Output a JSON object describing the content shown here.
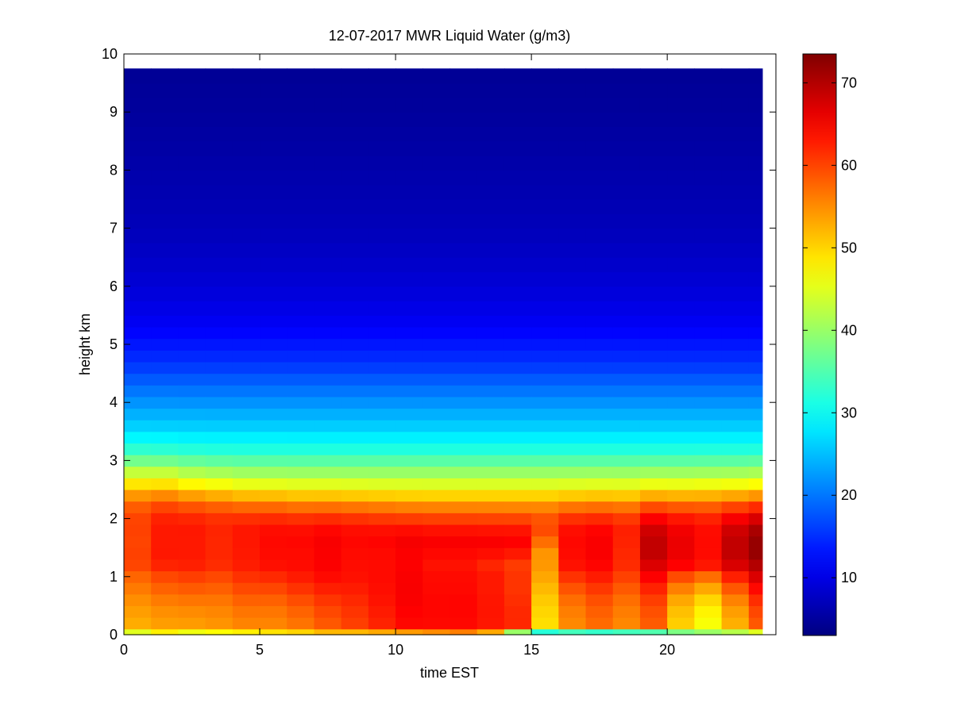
{
  "chart_data": {
    "type": "heatmap",
    "title": "12-07-2017 MWR Liquid Water (g/m3)",
    "xlabel": "time EST",
    "ylabel": "height km",
    "xlim": [
      0,
      24
    ],
    "ylim": [
      0,
      10
    ],
    "x_ticks": [
      "0",
      "5",
      "10",
      "15",
      "20"
    ],
    "y_ticks": [
      "0",
      "1",
      "2",
      "3",
      "4",
      "5",
      "6",
      "7",
      "8",
      "9",
      "10"
    ],
    "colorbar": {
      "range": [
        3,
        73.5
      ],
      "ticks": [
        "10",
        "20",
        "30",
        "40",
        "50",
        "60",
        "70"
      ],
      "colormap": "jet"
    },
    "grid": false,
    "x_edges": [
      0,
      1,
      2,
      3,
      4,
      5,
      6,
      7,
      8,
      9,
      10,
      11,
      12,
      13,
      14,
      15,
      16,
      17,
      18,
      19,
      20,
      21,
      22,
      23,
      23.5
    ],
    "y_edges": [
      0,
      0.1,
      0.3,
      0.5,
      0.7,
      0.9,
      1.1,
      1.3,
      1.5,
      1.7,
      1.9,
      2.1,
      2.3,
      2.5,
      2.7,
      2.9,
      3.1,
      3.3,
      3.5,
      3.7,
      3.9,
      4.1,
      4.3,
      4.5,
      4.7,
      4.9,
      5.1,
      5.3,
      5.5,
      5.75,
      6.0,
      6.25,
      6.5,
      6.75,
      7.0,
      7.25,
      7.5,
      7.75,
      8.0,
      8.25,
      8.5,
      8.75,
      9.0,
      9.25,
      9.5,
      9.75
    ],
    "profile": [
      {
        "z": 0.0,
        "v": 39
      },
      {
        "z": 0.1,
        "v": 51
      },
      {
        "z": 0.3,
        "v": 56
      },
      {
        "z": 0.5,
        "v": 55
      },
      {
        "z": 0.7,
        "v": 54
      },
      {
        "z": 0.9,
        "v": 54
      },
      {
        "z": 1.1,
        "v": 56
      },
      {
        "z": 1.3,
        "v": 63
      },
      {
        "z": 1.5,
        "v": 66
      },
      {
        "z": 1.7,
        "v": 65
      },
      {
        "z": 1.9,
        "v": 62
      },
      {
        "z": 2.1,
        "v": 58
      },
      {
        "z": 2.3,
        "v": 53
      },
      {
        "z": 2.5,
        "v": 47
      },
      {
        "z": 2.7,
        "v": 42
      },
      {
        "z": 2.9,
        "v": 38
      },
      {
        "z": 3.1,
        "v": 33
      },
      {
        "z": 3.3,
        "v": 30
      },
      {
        "z": 3.5,
        "v": 27
      },
      {
        "z": 3.7,
        "v": 25
      },
      {
        "z": 3.9,
        "v": 23
      },
      {
        "z": 4.1,
        "v": 21
      },
      {
        "z": 4.3,
        "v": 19
      },
      {
        "z": 4.5,
        "v": 17
      },
      {
        "z": 4.7,
        "v": 15
      },
      {
        "z": 4.9,
        "v": 14
      },
      {
        "z": 5.1,
        "v": 12.5
      },
      {
        "z": 5.3,
        "v": 11.5
      },
      {
        "z": 5.5,
        "v": 10.5
      },
      {
        "z": 6.0,
        "v": 9
      },
      {
        "z": 6.5,
        "v": 8
      },
      {
        "z": 7.0,
        "v": 7
      },
      {
        "z": 7.5,
        "v": 6.5
      },
      {
        "z": 8.0,
        "v": 6
      },
      {
        "z": 8.5,
        "v": 5.5
      },
      {
        "z": 9.0,
        "v": 5
      },
      {
        "z": 9.75,
        "v": 4.5
      }
    ],
    "columns": [
      {
        "t": 0.5,
        "surface": 45,
        "peak": 60,
        "peak_z": 1.6,
        "low": 52,
        "width": 1.3
      },
      {
        "t": 1.5,
        "surface": 48,
        "peak": 63,
        "peak_z": 1.6,
        "low": 53,
        "width": 1.25
      },
      {
        "t": 2.5,
        "surface": 46,
        "peak": 63,
        "peak_z": 1.5,
        "low": 53,
        "width": 1.2
      },
      {
        "t": 3.5,
        "surface": 47,
        "peak": 62,
        "peak_z": 1.5,
        "low": 54,
        "width": 1.1
      },
      {
        "t": 4.5,
        "surface": 48,
        "peak": 63,
        "peak_z": 1.4,
        "low": 55,
        "width": 1.05
      },
      {
        "t": 5.5,
        "surface": 49,
        "peak": 64,
        "peak_z": 1.4,
        "low": 55,
        "width": 1.0
      },
      {
        "t": 6.5,
        "surface": 50,
        "peak": 64,
        "peak_z": 1.3,
        "low": 56,
        "width": 1.0
      },
      {
        "t": 7.5,
        "surface": 52,
        "peak": 65,
        "peak_z": 1.3,
        "low": 58,
        "width": 1.0
      },
      {
        "t": 8.5,
        "surface": 52,
        "peak": 64,
        "peak_z": 1.3,
        "low": 60,
        "width": 0.95
      },
      {
        "t": 9.5,
        "surface": 53,
        "peak": 64,
        "peak_z": 1.2,
        "low": 62,
        "width": 0.95
      },
      {
        "t": 10.5,
        "surface": 54,
        "peak": 65,
        "peak_z": 1.1,
        "low": 64,
        "width": 0.9
      },
      {
        "t": 11.5,
        "surface": 55,
        "peak": 64,
        "peak_z": 1.0,
        "low": 64,
        "width": 0.9
      },
      {
        "t": 12.5,
        "surface": 56,
        "peak": 64,
        "peak_z": 1.0,
        "low": 64,
        "width": 0.85
      },
      {
        "t": 13.5,
        "surface": 53,
        "peak": 63,
        "peak_z": 0.9,
        "low": 63,
        "width": 0.85
      },
      {
        "t": 14.5,
        "surface": 40,
        "peak": 61,
        "peak_z": 0.9,
        "low": 62,
        "width": 0.8
      },
      {
        "t": 15.5,
        "surface": 32,
        "peak": 54,
        "peak_z": 1.3,
        "low": 49,
        "width": 0.8
      },
      {
        "t": 16.5,
        "surface": 34,
        "peak": 64,
        "peak_z": 1.4,
        "low": 55,
        "width": 0.85
      },
      {
        "t": 17.5,
        "surface": 33,
        "peak": 65,
        "peak_z": 1.4,
        "low": 57,
        "width": 0.9
      },
      {
        "t": 18.5,
        "surface": 34,
        "peak": 62,
        "peak_z": 1.4,
        "low": 55,
        "width": 0.9
      },
      {
        "t": 19.5,
        "surface": 35,
        "peak": 69,
        "peak_z": 1.5,
        "low": 58,
        "width": 0.95
      },
      {
        "t": 20.5,
        "surface": 38,
        "peak": 66,
        "peak_z": 1.5,
        "low": 50,
        "width": 0.95
      },
      {
        "t": 21.5,
        "surface": 40,
        "peak": 64,
        "peak_z": 1.5,
        "low": 46,
        "width": 1.0
      },
      {
        "t": 22.5,
        "surface": 42,
        "peak": 69,
        "peak_z": 1.5,
        "low": 52,
        "width": 1.0
      },
      {
        "t": 23.25,
        "surface": 45,
        "peak": 72,
        "peak_z": 1.5,
        "low": 58,
        "width": 1.05
      }
    ]
  }
}
